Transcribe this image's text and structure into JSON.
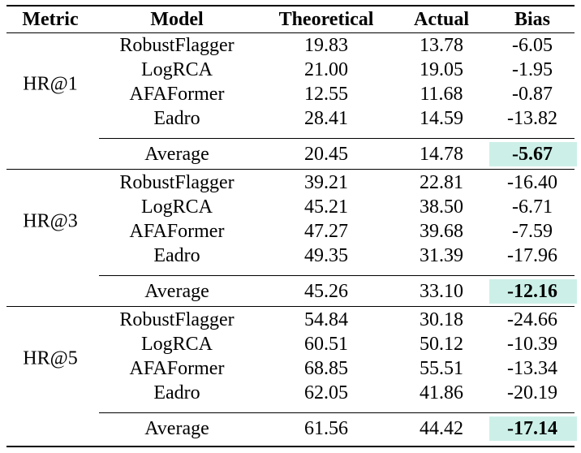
{
  "columns": [
    "Metric",
    "Model",
    "Theoretical",
    "Actual",
    "Bias"
  ],
  "highlight_color": "#ccf0e8",
  "groups": [
    {
      "metric": "HR@1",
      "rows": [
        {
          "model": "RobustFlagger",
          "theoretical": "19.83",
          "actual": "13.78",
          "bias": "-6.05"
        },
        {
          "model": "LogRCA",
          "theoretical": "21.00",
          "actual": "19.05",
          "bias": "-1.95"
        },
        {
          "model": "AFAFormer",
          "theoretical": "12.55",
          "actual": "11.68",
          "bias": "-0.87"
        },
        {
          "model": "Eadro",
          "theoretical": "28.41",
          "actual": "14.59",
          "bias": "-13.82"
        }
      ],
      "average": {
        "label": "Average",
        "theoretical": "20.45",
        "actual": "14.78",
        "bias": "-5.67"
      }
    },
    {
      "metric": "HR@3",
      "rows": [
        {
          "model": "RobustFlagger",
          "theoretical": "39.21",
          "actual": "22.81",
          "bias": "-16.40"
        },
        {
          "model": "LogRCA",
          "theoretical": "45.21",
          "actual": "38.50",
          "bias": "-6.71"
        },
        {
          "model": "AFAFormer",
          "theoretical": "47.27",
          "actual": "39.68",
          "bias": "-7.59"
        },
        {
          "model": "Eadro",
          "theoretical": "49.35",
          "actual": "31.39",
          "bias": "-17.96"
        }
      ],
      "average": {
        "label": "Average",
        "theoretical": "45.26",
        "actual": "33.10",
        "bias": "-12.16"
      }
    },
    {
      "metric": "HR@5",
      "rows": [
        {
          "model": "RobustFlagger",
          "theoretical": "54.84",
          "actual": "30.18",
          "bias": "-24.66"
        },
        {
          "model": "LogRCA",
          "theoretical": "60.51",
          "actual": "50.12",
          "bias": "-10.39"
        },
        {
          "model": "AFAFormer",
          "theoretical": "68.85",
          "actual": "55.51",
          "bias": "-13.34"
        },
        {
          "model": "Eadro",
          "theoretical": "62.05",
          "actual": "41.86",
          "bias": "-20.19"
        }
      ],
      "average": {
        "label": "Average",
        "theoretical": "61.56",
        "actual": "44.42",
        "bias": "-17.14"
      }
    }
  ]
}
